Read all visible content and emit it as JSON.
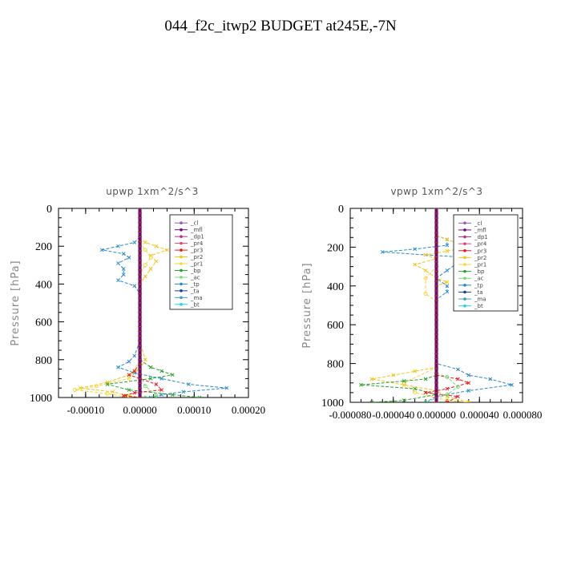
{
  "figure": {
    "title": "044_f2c_itwp2  BUDGET at245E,-7N"
  },
  "chart_data": [
    {
      "type": "line",
      "title": "upwp   1xm^2/s^3",
      "ylabel": "Pressure [hPa]",
      "xlabel": "",
      "xlim": [
        -0.00015,
        0.0002
      ],
      "ylim": [
        1000,
        0
      ],
      "xticks": [
        -0.0001,
        0.0,
        0.0001,
        0.0002
      ],
      "xtick_labels": [
        "-0.00010",
        "0.00000",
        "0.00010",
        "0.00020"
      ],
      "yticks": [
        0,
        200,
        400,
        600,
        800,
        1000
      ],
      "ytick_labels": [
        "0",
        "200",
        "400",
        "600",
        "800",
        "1000"
      ],
      "legend": [
        "_cl",
        "_mfl",
        "_dp1",
        "_pr4",
        "_pr3",
        "_pr2",
        "_pr1",
        "_bp",
        "_ac",
        "_tp",
        "_ta",
        "_ma",
        "_bt"
      ],
      "legend_position": "top-right",
      "series": [
        {
          "name": "_tp",
          "color": "#2a8ac8",
          "marker": "x",
          "points": [
            [
              0,
              150
            ],
            [
              -1e-05,
              180
            ],
            [
              -4e-05,
              200
            ],
            [
              -7e-05,
              220
            ],
            [
              -3e-05,
              240
            ],
            [
              -2e-05,
              260
            ],
            [
              -4e-05,
              290
            ],
            [
              -3e-05,
              320
            ],
            [
              -3e-05,
              350
            ],
            [
              -4e-05,
              380
            ],
            [
              -1e-05,
              410
            ],
            [
              0,
              450
            ],
            [
              0,
              500
            ],
            [
              0,
              700
            ],
            [
              -1e-05,
              780
            ],
            [
              -2e-05,
              810
            ],
            [
              -4e-05,
              840
            ],
            [
              -1e-05,
              870
            ],
            [
              4e-05,
              900
            ],
            [
              9e-05,
              930
            ],
            [
              0.00016,
              950
            ],
            [
              8e-05,
              970
            ],
            [
              4e-05,
              985
            ],
            [
              2e-05,
              1000
            ]
          ]
        },
        {
          "name": "_pr2",
          "color": "#f2c418",
          "marker": "x",
          "points": [
            [
              0,
              150
            ],
            [
              1e-05,
              180
            ],
            [
              3e-05,
              200
            ],
            [
              5e-05,
              220
            ],
            [
              2e-05,
              250
            ],
            [
              3e-05,
              280
            ],
            [
              2e-05,
              320
            ],
            [
              1e-05,
              360
            ],
            [
              0,
              400
            ],
            [
              0,
              700
            ],
            [
              1e-05,
              800
            ],
            [
              0,
              850
            ],
            [
              -2e-05,
              880
            ],
            [
              -6e-05,
              920
            ],
            [
              -0.00011,
              950
            ],
            [
              -5e-05,
              970
            ],
            [
              -2e-05,
              990
            ],
            [
              0,
              1000
            ]
          ]
        },
        {
          "name": "_pr1",
          "color": "#f5d440",
          "marker": "circle",
          "points": [
            [
              0,
              180
            ],
            [
              1e-05,
              220
            ],
            [
              2e-05,
              260
            ],
            [
              1e-05,
              300
            ],
            [
              0,
              350
            ],
            [
              0,
              800
            ],
            [
              -2e-05,
              900
            ],
            [
              -8e-05,
              940
            ],
            [
              -0.00012,
              960
            ],
            [
              -6e-05,
              980
            ],
            [
              -2e-05,
              1000
            ]
          ]
        },
        {
          "name": "_bp",
          "color": "#2ca02c",
          "marker": "x",
          "points": [
            [
              0,
              800
            ],
            [
              2e-05,
              840
            ],
            [
              4e-05,
              860
            ],
            [
              6e-05,
              880
            ],
            [
              2e-05,
              900
            ],
            [
              -6e-05,
              930
            ],
            [
              -2e-05,
              960
            ],
            [
              6e-05,
              985
            ],
            [
              0.00011,
              1000
            ]
          ]
        },
        {
          "name": "_pr3",
          "color": "#e41a1c",
          "marker": "x",
          "points": [
            [
              0,
              820
            ],
            [
              -1e-05,
              860
            ],
            [
              -2e-05,
              880
            ],
            [
              0,
              900
            ],
            [
              3e-05,
              930
            ],
            [
              4e-05,
              960
            ],
            [
              -1e-05,
              975
            ],
            [
              -3e-05,
              990
            ],
            [
              0,
              1000
            ]
          ]
        },
        {
          "name": "_ac",
          "color": "#7cd67c",
          "marker": "circle",
          "points": [
            [
              0,
              880
            ],
            [
              1e-05,
              940
            ],
            [
              3e-05,
              990
            ],
            [
              1e-05,
              1000
            ]
          ]
        },
        {
          "name": "_cl",
          "color": "#9b59b6",
          "marker": "x",
          "points": [
            [
              0,
              0
            ],
            [
              0,
              1000
            ]
          ]
        },
        {
          "name": "_mfl",
          "color": "#6d0f6d",
          "marker": "tri",
          "points": [
            [
              0,
              0
            ],
            [
              0,
              1000
            ]
          ]
        }
      ]
    },
    {
      "type": "line",
      "title": "vpwp   1xm^2/s^3",
      "ylabel": "Pressure [hPa]",
      "xlabel": "",
      "xlim": [
        -8e-05,
        8e-05
      ],
      "ylim": [
        1000,
        0
      ],
      "xticks": [
        -8e-05,
        -4e-05,
        0.0,
        4e-05,
        8e-05
      ],
      "xtick_labels": [
        "-0.000080",
        "-0.000040",
        "0.000000",
        "0.000040",
        "0.000080"
      ],
      "yticks": [
        0,
        200,
        400,
        600,
        800,
        1000
      ],
      "ytick_labels": [
        "0",
        "200",
        "400",
        "600",
        "800",
        "1000"
      ],
      "legend": [
        "_cl",
        "_mfl",
        "_dp1",
        "_pr4",
        "_pr3",
        "_pr2",
        "_pr1",
        "_bp",
        "_ac",
        "_tp",
        "_ta",
        "_ma",
        "_bt"
      ],
      "legend_position": "top-right",
      "series": [
        {
          "name": "_tp",
          "color": "#2a8ac8",
          "marker": "x",
          "points": [
            [
              0,
              140
            ],
            [
              1e-05,
              160
            ],
            [
              1e-05,
              190
            ],
            [
              -2e-05,
              210
            ],
            [
              -5e-05,
              225
            ],
            [
              -1e-05,
              240
            ],
            [
              2e-05,
              250
            ],
            [
              2e-05,
              280
            ],
            [
              1e-05,
              320
            ],
            [
              0,
              360
            ],
            [
              1e-05,
              400
            ],
            [
              1e-05,
              430
            ],
            [
              0,
              470
            ],
            [
              0,
              800
            ],
            [
              2e-05,
              830
            ],
            [
              3e-05,
              860
            ],
            [
              5e-05,
              880
            ],
            [
              7e-05,
              910
            ],
            [
              3e-05,
              940
            ],
            [
              0,
              970
            ],
            [
              -1e-05,
              1000
            ]
          ]
        },
        {
          "name": "_pr2",
          "color": "#f2c418",
          "marker": "x",
          "points": [
            [
              0,
              140
            ],
            [
              1e-05,
              160
            ],
            [
              2e-05,
              180
            ],
            [
              3e-05,
              200
            ],
            [
              1e-05,
              220
            ],
            [
              -1e-05,
              240
            ],
            [
              0,
              260
            ],
            [
              -2e-05,
              290
            ],
            [
              -1e-05,
              320
            ],
            [
              0,
              360
            ],
            [
              1e-05,
              380
            ],
            [
              0,
              400
            ],
            [
              0,
              820
            ],
            [
              -2e-05,
              840
            ],
            [
              -4e-05,
              860
            ],
            [
              -6e-05,
              880
            ],
            [
              -3e-05,
              910
            ],
            [
              0,
              940
            ],
            [
              1e-05,
              970
            ],
            [
              3e-05,
              1000
            ]
          ]
        },
        {
          "name": "_pr1",
          "color": "#f5d440",
          "marker": "circle",
          "points": [
            [
              0,
              220
            ],
            [
              0,
              300
            ],
            [
              -1e-05,
              360
            ],
            [
              -1e-05,
              440
            ],
            [
              0,
              480
            ],
            [
              0,
              820
            ],
            [
              -3e-05,
              900
            ],
            [
              -2e-05,
              950
            ],
            [
              1e-05,
              990
            ],
            [
              3e-05,
              1000
            ]
          ]
        },
        {
          "name": "_bp",
          "color": "#2ca02c",
          "marker": "x",
          "points": [
            [
              0,
              860
            ],
            [
              -1e-05,
              880
            ],
            [
              -3e-05,
              890
            ],
            [
              -7e-05,
              910
            ],
            [
              -2e-05,
              930
            ],
            [
              0,
              960
            ],
            [
              -3e-05,
              990
            ],
            [
              -6e-05,
              1000
            ]
          ]
        },
        {
          "name": "_pr3",
          "color": "#e41a1c",
          "marker": "x",
          "points": [
            [
              0,
              860
            ],
            [
              2e-05,
              880
            ],
            [
              3e-05,
              900
            ],
            [
              1e-05,
              930
            ],
            [
              -1e-05,
              950
            ],
            [
              2e-05,
              970
            ],
            [
              1e-05,
              1000
            ]
          ]
        },
        {
          "name": "_ac",
          "color": "#7cd67c",
          "marker": "circle",
          "points": [
            [
              0,
              850
            ],
            [
              1e-05,
              870
            ],
            [
              2e-05,
              920
            ],
            [
              1e-05,
              960
            ],
            [
              -1e-05,
              1000
            ]
          ]
        },
        {
          "name": "_cl",
          "color": "#9b59b6",
          "marker": "x",
          "points": [
            [
              0,
              0
            ],
            [
              0,
              1000
            ]
          ]
        },
        {
          "name": "_mfl",
          "color": "#6d0f6d",
          "marker": "tri",
          "points": [
            [
              0,
              0
            ],
            [
              0,
              1000
            ]
          ]
        }
      ]
    }
  ],
  "legend_colors": {
    "_cl": "#9b59b6",
    "_mfl": "#6d0f6d",
    "_dp1": "#b03090",
    "_pr4": "#e0457a",
    "_pr3": "#e41a1c",
    "_pr2": "#f2c418",
    "_pr1": "#f5d440",
    "_bp": "#2ca02c",
    "_ac": "#7cd67c",
    "_tp": "#2a8ac8",
    "_ta": "#1f3f99",
    "_ma": "#40a0b0",
    "_bt": "#22d4e0"
  }
}
